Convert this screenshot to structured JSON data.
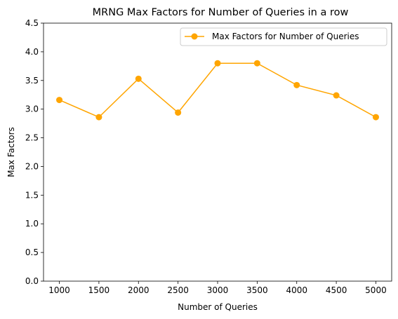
{
  "chart_data": {
    "type": "line",
    "title": "MRNG Max Factors for Number of Queries in a row",
    "xlabel": "Number of Queries",
    "ylabel": "Max Factors",
    "x": [
      1000,
      1500,
      2000,
      2500,
      3000,
      3500,
      4000,
      4500,
      5000
    ],
    "xticks": [
      "1000",
      "1500",
      "2000",
      "2500",
      "3000",
      "3500",
      "4000",
      "4500",
      "5000"
    ],
    "ylim": [
      0.0,
      4.5
    ],
    "yticks": [
      "0.0",
      "0.5",
      "1.0",
      "1.5",
      "2.0",
      "2.5",
      "3.0",
      "3.5",
      "4.0",
      "4.5"
    ],
    "series": [
      {
        "name": "Max Factors for Number of Queries",
        "color": "#FFA500",
        "marker": "circle",
        "values": [
          3.16,
          2.86,
          3.53,
          2.94,
          3.8,
          3.8,
          3.42,
          3.24,
          2.86
        ]
      }
    ],
    "grid": false,
    "legend": "top-right"
  }
}
